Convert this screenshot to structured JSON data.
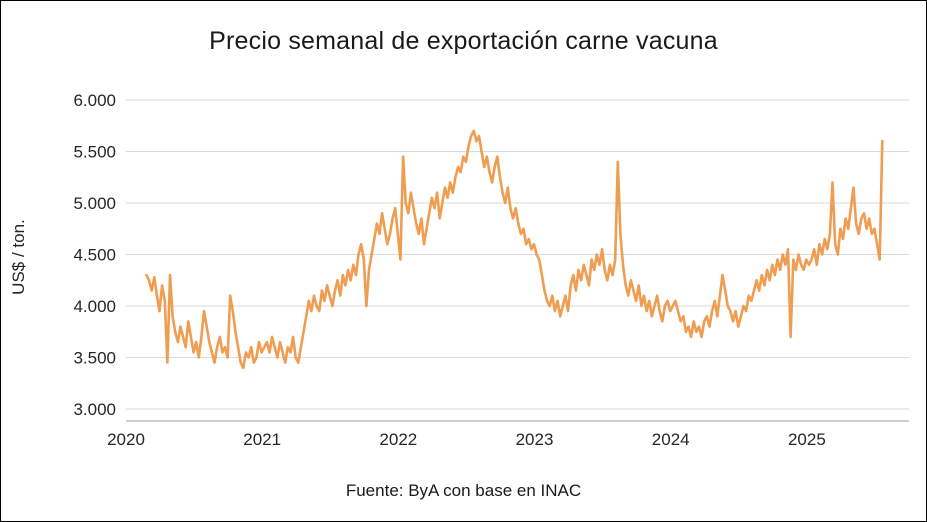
{
  "chart_data": {
    "type": "line",
    "title": "Precio semanal de exportación carne vacuna",
    "ylabel": "US$ / ton.",
    "xlabel": "",
    "source": "Fuente: ByA con base en INAC",
    "legend": "none",
    "grid": "horizontal",
    "line_color": "#EF9D51",
    "xlim": [
      2020,
      2025.75
    ],
    "ylim": [
      3000,
      6000
    ],
    "x_start": 2020.15,
    "x_step": 0.0192308,
    "y_ticks": [
      {
        "value": 3000,
        "label": "3.000"
      },
      {
        "value": 3500,
        "label": "3.500"
      },
      {
        "value": 4000,
        "label": "4.000"
      },
      {
        "value": 4500,
        "label": "4.500"
      },
      {
        "value": 5000,
        "label": "5.000"
      },
      {
        "value": 5500,
        "label": "5.500"
      },
      {
        "value": 6000,
        "label": "6.000"
      }
    ],
    "x_ticks": [
      {
        "value": 2020,
        "label": "2020"
      },
      {
        "value": 2021,
        "label": "2021"
      },
      {
        "value": 2022,
        "label": "2022"
      },
      {
        "value": 2023,
        "label": "2023"
      },
      {
        "value": 2024,
        "label": "2024"
      },
      {
        "value": 2025,
        "label": "2025"
      }
    ],
    "values": [
      4300,
      4250,
      4150,
      4280,
      4100,
      3950,
      4200,
      4050,
      3450,
      4300,
      3900,
      3750,
      3650,
      3800,
      3700,
      3600,
      3850,
      3700,
      3550,
      3650,
      3500,
      3700,
      3950,
      3800,
      3650,
      3550,
      3450,
      3600,
      3700,
      3550,
      3600,
      3500,
      4100,
      3950,
      3750,
      3600,
      3450,
      3400,
      3550,
      3500,
      3600,
      3450,
      3500,
      3650,
      3550,
      3600,
      3650,
      3550,
      3700,
      3600,
      3500,
      3650,
      3550,
      3450,
      3600,
      3550,
      3700,
      3500,
      3450,
      3600,
      3750,
      3900,
      4050,
      3950,
      4100,
      4000,
      3950,
      4150,
      4050,
      4200,
      4100,
      4000,
      4150,
      4250,
      4100,
      4300,
      4200,
      4350,
      4250,
      4400,
      4300,
      4500,
      4600,
      4450,
      4000,
      4350,
      4500,
      4650,
      4800,
      4700,
      4900,
      4750,
      4600,
      4700,
      4850,
      4950,
      4700,
      4450,
      5450,
      5000,
      4900,
      5100,
      4950,
      4800,
      4700,
      4850,
      4600,
      4750,
      4900,
      5050,
      4950,
      5100,
      4850,
      5000,
      5150,
      5050,
      5200,
      5100,
      5250,
      5350,
      5300,
      5450,
      5400,
      5550,
      5650,
      5700,
      5600,
      5650,
      5500,
      5350,
      5450,
      5300,
      5200,
      5350,
      5450,
      5250,
      5100,
      5000,
      5150,
      4950,
      4850,
      4950,
      4800,
      4700,
      4750,
      4600,
      4650,
      4550,
      4600,
      4500,
      4450,
      4300,
      4150,
      4050,
      4000,
      4100,
      3950,
      4050,
      3900,
      4000,
      4100,
      3950,
      4200,
      4300,
      4150,
      4350,
      4250,
      4400,
      4300,
      4200,
      4450,
      4350,
      4500,
      4400,
      4550,
      4350,
      4250,
      4400,
      4300,
      4450,
      5400,
      4700,
      4400,
      4200,
      4100,
      4250,
      4150,
      4050,
      4200,
      4000,
      4100,
      3950,
      4050,
      3900,
      4000,
      4100,
      3950,
      3850,
      4000,
      4050,
      3950,
      4000,
      4050,
      3950,
      3850,
      3900,
      3750,
      3800,
      3700,
      3850,
      3750,
      3800,
      3700,
      3850,
      3900,
      3800,
      3950,
      4050,
      3900,
      4100,
      4300,
      4150,
      4000,
      3950,
      3850,
      3950,
      3800,
      3900,
      4000,
      3950,
      4100,
      4050,
      4150,
      4250,
      4150,
      4300,
      4200,
      4350,
      4250,
      4400,
      4300,
      4450,
      4350,
      4500,
      4400,
      4550,
      3700,
      4450,
      4350,
      4500,
      4400,
      4350,
      4450,
      4400,
      4450,
      4550,
      4400,
      4600,
      4500,
      4650,
      4550,
      4700,
      5200,
      4600,
      4500,
      4750,
      4650,
      4850,
      4750,
      4950,
      5150,
      4800,
      4700,
      4850,
      4900,
      4750,
      4850,
      4700,
      4750,
      4600,
      4450,
      5600
    ]
  }
}
